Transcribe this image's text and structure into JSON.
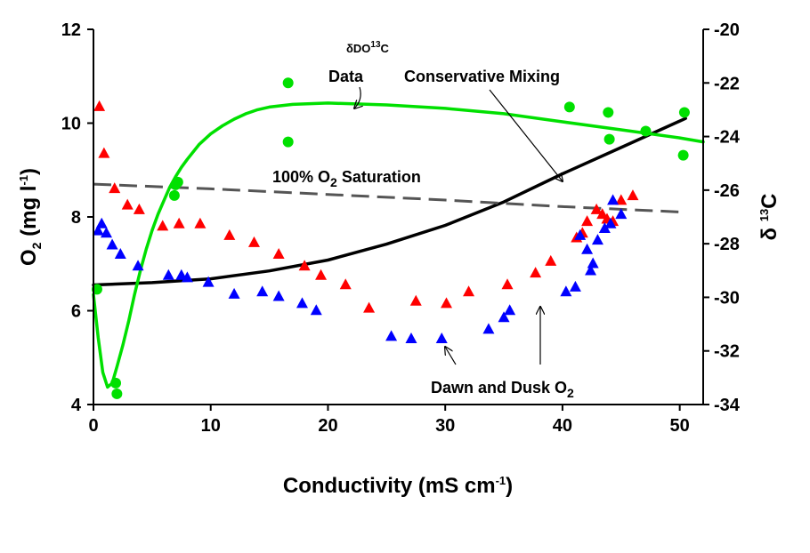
{
  "chart_data": {
    "type": "scatter",
    "title": "",
    "xlabel": {
      "prefix": "Conductivity (mS cm",
      "sup": "-1",
      "suffix": ")"
    },
    "ylabel_left": {
      "prefix": "O",
      "sub": "2",
      "middle": " (mg l",
      "sup": "-1",
      "suffix": ")"
    },
    "ylabel_right": {
      "prefix": "δ ",
      "sup": "13",
      "suffix": "C"
    },
    "xlim": [
      0,
      52
    ],
    "ylim_left": [
      4,
      12
    ],
    "ylim_right": [
      -34,
      -20
    ],
    "x_ticks": [
      0,
      10,
      20,
      30,
      40,
      50
    ],
    "y_left_ticks": [
      4,
      6,
      8,
      10,
      12
    ],
    "y_right_ticks": [
      -34,
      -32,
      -30,
      -28,
      -26,
      -24,
      -22,
      -20
    ],
    "grid": false,
    "series": [
      {
        "axis": "left",
        "marker": "triangle",
        "color": "#ff0000",
        "x": [
          0.5,
          0.9,
          1.8,
          2.9,
          3.9,
          5.9,
          7.3,
          9.1,
          11.6,
          13.7,
          15.8,
          18.0,
          19.4,
          21.5,
          23.5,
          27.5,
          30.1,
          32.0,
          35.3,
          37.7,
          39.0,
          41.2,
          41.7,
          42.1,
          42.9,
          43.4,
          43.8,
          44.3,
          45.0,
          46.0
        ],
        "y": [
          10.35,
          9.35,
          8.6,
          8.25,
          8.15,
          7.8,
          7.85,
          7.85,
          7.6,
          7.45,
          7.2,
          6.95,
          6.75,
          6.55,
          6.05,
          6.2,
          6.15,
          6.4,
          6.55,
          6.8,
          7.05,
          7.55,
          7.65,
          7.9,
          8.15,
          8.05,
          7.95,
          7.9,
          8.35,
          8.45
        ]
      },
      {
        "axis": "left",
        "marker": "triangle",
        "color": "#0000ff",
        "x": [
          0.4,
          0.7,
          1.1,
          1.6,
          2.3,
          3.8,
          6.4,
          7.5,
          8.0,
          9.8,
          12.0,
          14.4,
          15.8,
          17.8,
          19.0,
          25.4,
          27.1,
          29.7,
          33.7,
          35.0,
          35.5,
          40.3,
          41.1,
          41.5,
          42.1,
          42.4,
          42.6,
          43.0,
          43.6,
          44.1,
          44.3,
          45.0
        ],
        "y": [
          7.7,
          7.85,
          7.65,
          7.4,
          7.2,
          6.95,
          6.75,
          6.75,
          6.7,
          6.6,
          6.35,
          6.4,
          6.3,
          6.15,
          6.0,
          5.45,
          5.4,
          5.4,
          5.6,
          5.85,
          6.0,
          6.4,
          6.5,
          7.6,
          7.3,
          6.85,
          7.0,
          7.5,
          7.75,
          7.85,
          8.35,
          8.05
        ]
      },
      {
        "axis": "right",
        "marker": "circle",
        "color": "#00e000",
        "x": [
          0.3,
          1.9,
          2.0,
          6.9,
          7.0,
          7.2,
          16.6,
          16.6,
          40.6,
          43.9,
          44.0,
          47.1,
          50.3,
          50.4
        ],
        "y": [
          -29.7,
          -33.2,
          -33.6,
          -26.2,
          -25.8,
          -25.7,
          -24.2,
          -22.0,
          -22.9,
          -23.1,
          -24.1,
          -23.8,
          -24.7,
          -23.1
        ]
      }
    ],
    "lines": [
      {
        "name": "Conservative Mixing",
        "axis": "left",
        "color": "#000000",
        "dash": "solid",
        "x": [
          0,
          5,
          10,
          15,
          20,
          25,
          30,
          35,
          40,
          45,
          50.5
        ],
        "y": [
          6.55,
          6.6,
          6.68,
          6.85,
          7.08,
          7.42,
          7.82,
          8.32,
          8.92,
          9.48,
          10.1
        ]
      },
      {
        "name": "100% O2 Saturation",
        "axis": "left",
        "color": "#555555",
        "dash": "dashed",
        "x": [
          0,
          10,
          20,
          30,
          40,
          50.5
        ],
        "y": [
          8.7,
          8.6,
          8.48,
          8.36,
          8.22,
          8.1
        ]
      },
      {
        "name": "δDO13C Data",
        "axis": "right",
        "color": "#00e000",
        "dash": "solid",
        "x": [
          0,
          0.4,
          0.8,
          1.2,
          1.6,
          2.0,
          2.5,
          3.0,
          3.5,
          4.0,
          4.5,
          5.0,
          5.5,
          6.0,
          6.5,
          7.0,
          7.5,
          8.0,
          9.0,
          10.0,
          11.0,
          12.0,
          13.0,
          14.0,
          15.0,
          17.0,
          20.0,
          25.0,
          30.0,
          35.0,
          40.0,
          45.0,
          50.0,
          52.0
        ],
        "y": [
          -29.9,
          -31.5,
          -32.8,
          -33.35,
          -33.2,
          -32.6,
          -31.8,
          -30.9,
          -29.9,
          -29.0,
          -28.2,
          -27.5,
          -26.9,
          -26.4,
          -25.9,
          -25.5,
          -25.15,
          -24.85,
          -24.3,
          -23.9,
          -23.6,
          -23.35,
          -23.15,
          -23.0,
          -22.9,
          -22.8,
          -22.75,
          -22.82,
          -22.95,
          -23.15,
          -23.45,
          -23.75,
          -24.05,
          -24.2
        ]
      }
    ],
    "annotations": {
      "ddo13c_data": {
        "top_prefix": "δDO",
        "top_sup": "13",
        "top_suffix": "C",
        "bottom": "Data"
      },
      "conservative_mixing": "Conservative Mixing",
      "saturation": {
        "prefix": "100% O",
        "sub": "2",
        "suffix": " Saturation"
      },
      "dawn_dusk": {
        "prefix": "Dawn and Dusk O",
        "sub": "2"
      }
    }
  }
}
